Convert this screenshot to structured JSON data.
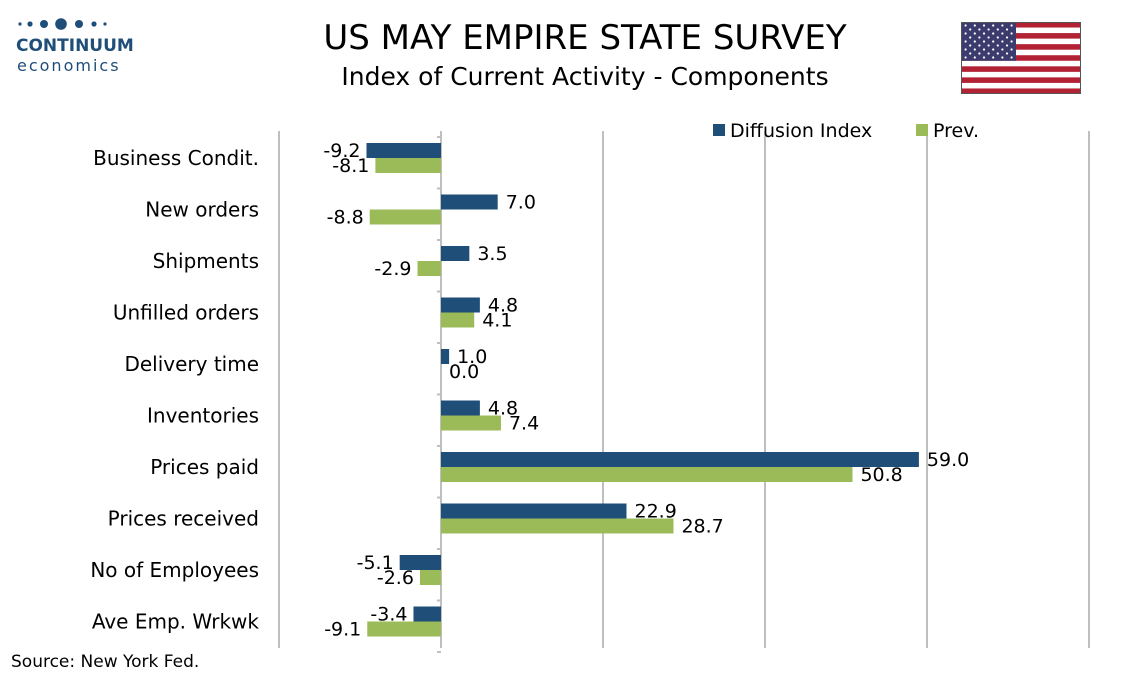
{
  "header": {
    "title": "US MAY EMPIRE STATE SURVEY",
    "subtitle": "Index of Current Activity - Components"
  },
  "logo": {
    "name": "CONTINUUM",
    "sub": "economics"
  },
  "source": "Source: New York Fed.",
  "colors": {
    "diffusion": "#1f4e79",
    "prev": "#9bbb59",
    "gridline": "#bfbfbf",
    "axis": "#bfbfbf"
  },
  "chart_data": {
    "type": "bar",
    "orientation": "horizontal",
    "title": "US MAY EMPIRE STATE SURVEY",
    "subtitle": "Index of Current Activity - Components",
    "categories": [
      "Business Condit.",
      "New orders",
      "Shipments",
      "Unfilled orders",
      "Delivery time",
      "Inventories",
      "Prices paid",
      "Prices received",
      "No of Employees",
      "Ave Emp. Wrkwk"
    ],
    "series": [
      {
        "name": "Diffusion Index",
        "values": [
          -9.2,
          7.0,
          3.5,
          4.8,
          1.0,
          4.8,
          59.0,
          22.9,
          -5.1,
          -3.4
        ],
        "labels": [
          "-9.2",
          "7.0",
          "3.5",
          "4.8",
          "1.0",
          "4.8",
          "59.0",
          "22.9",
          "-5.1",
          "-3.4"
        ]
      },
      {
        "name": "Prev.",
        "values": [
          -8.1,
          -8.8,
          -2.9,
          4.1,
          0.0,
          7.4,
          50.8,
          28.7,
          -2.6,
          -9.1
        ],
        "labels": [
          "-8.1",
          "-8.8",
          "-2.9",
          "4.1",
          "0.0",
          "7.4",
          "50.8",
          "28.7",
          "-2.6",
          "-9.1"
        ]
      }
    ],
    "xlim": [
      -20,
      80
    ],
    "grid": true,
    "legend": "top-right"
  }
}
